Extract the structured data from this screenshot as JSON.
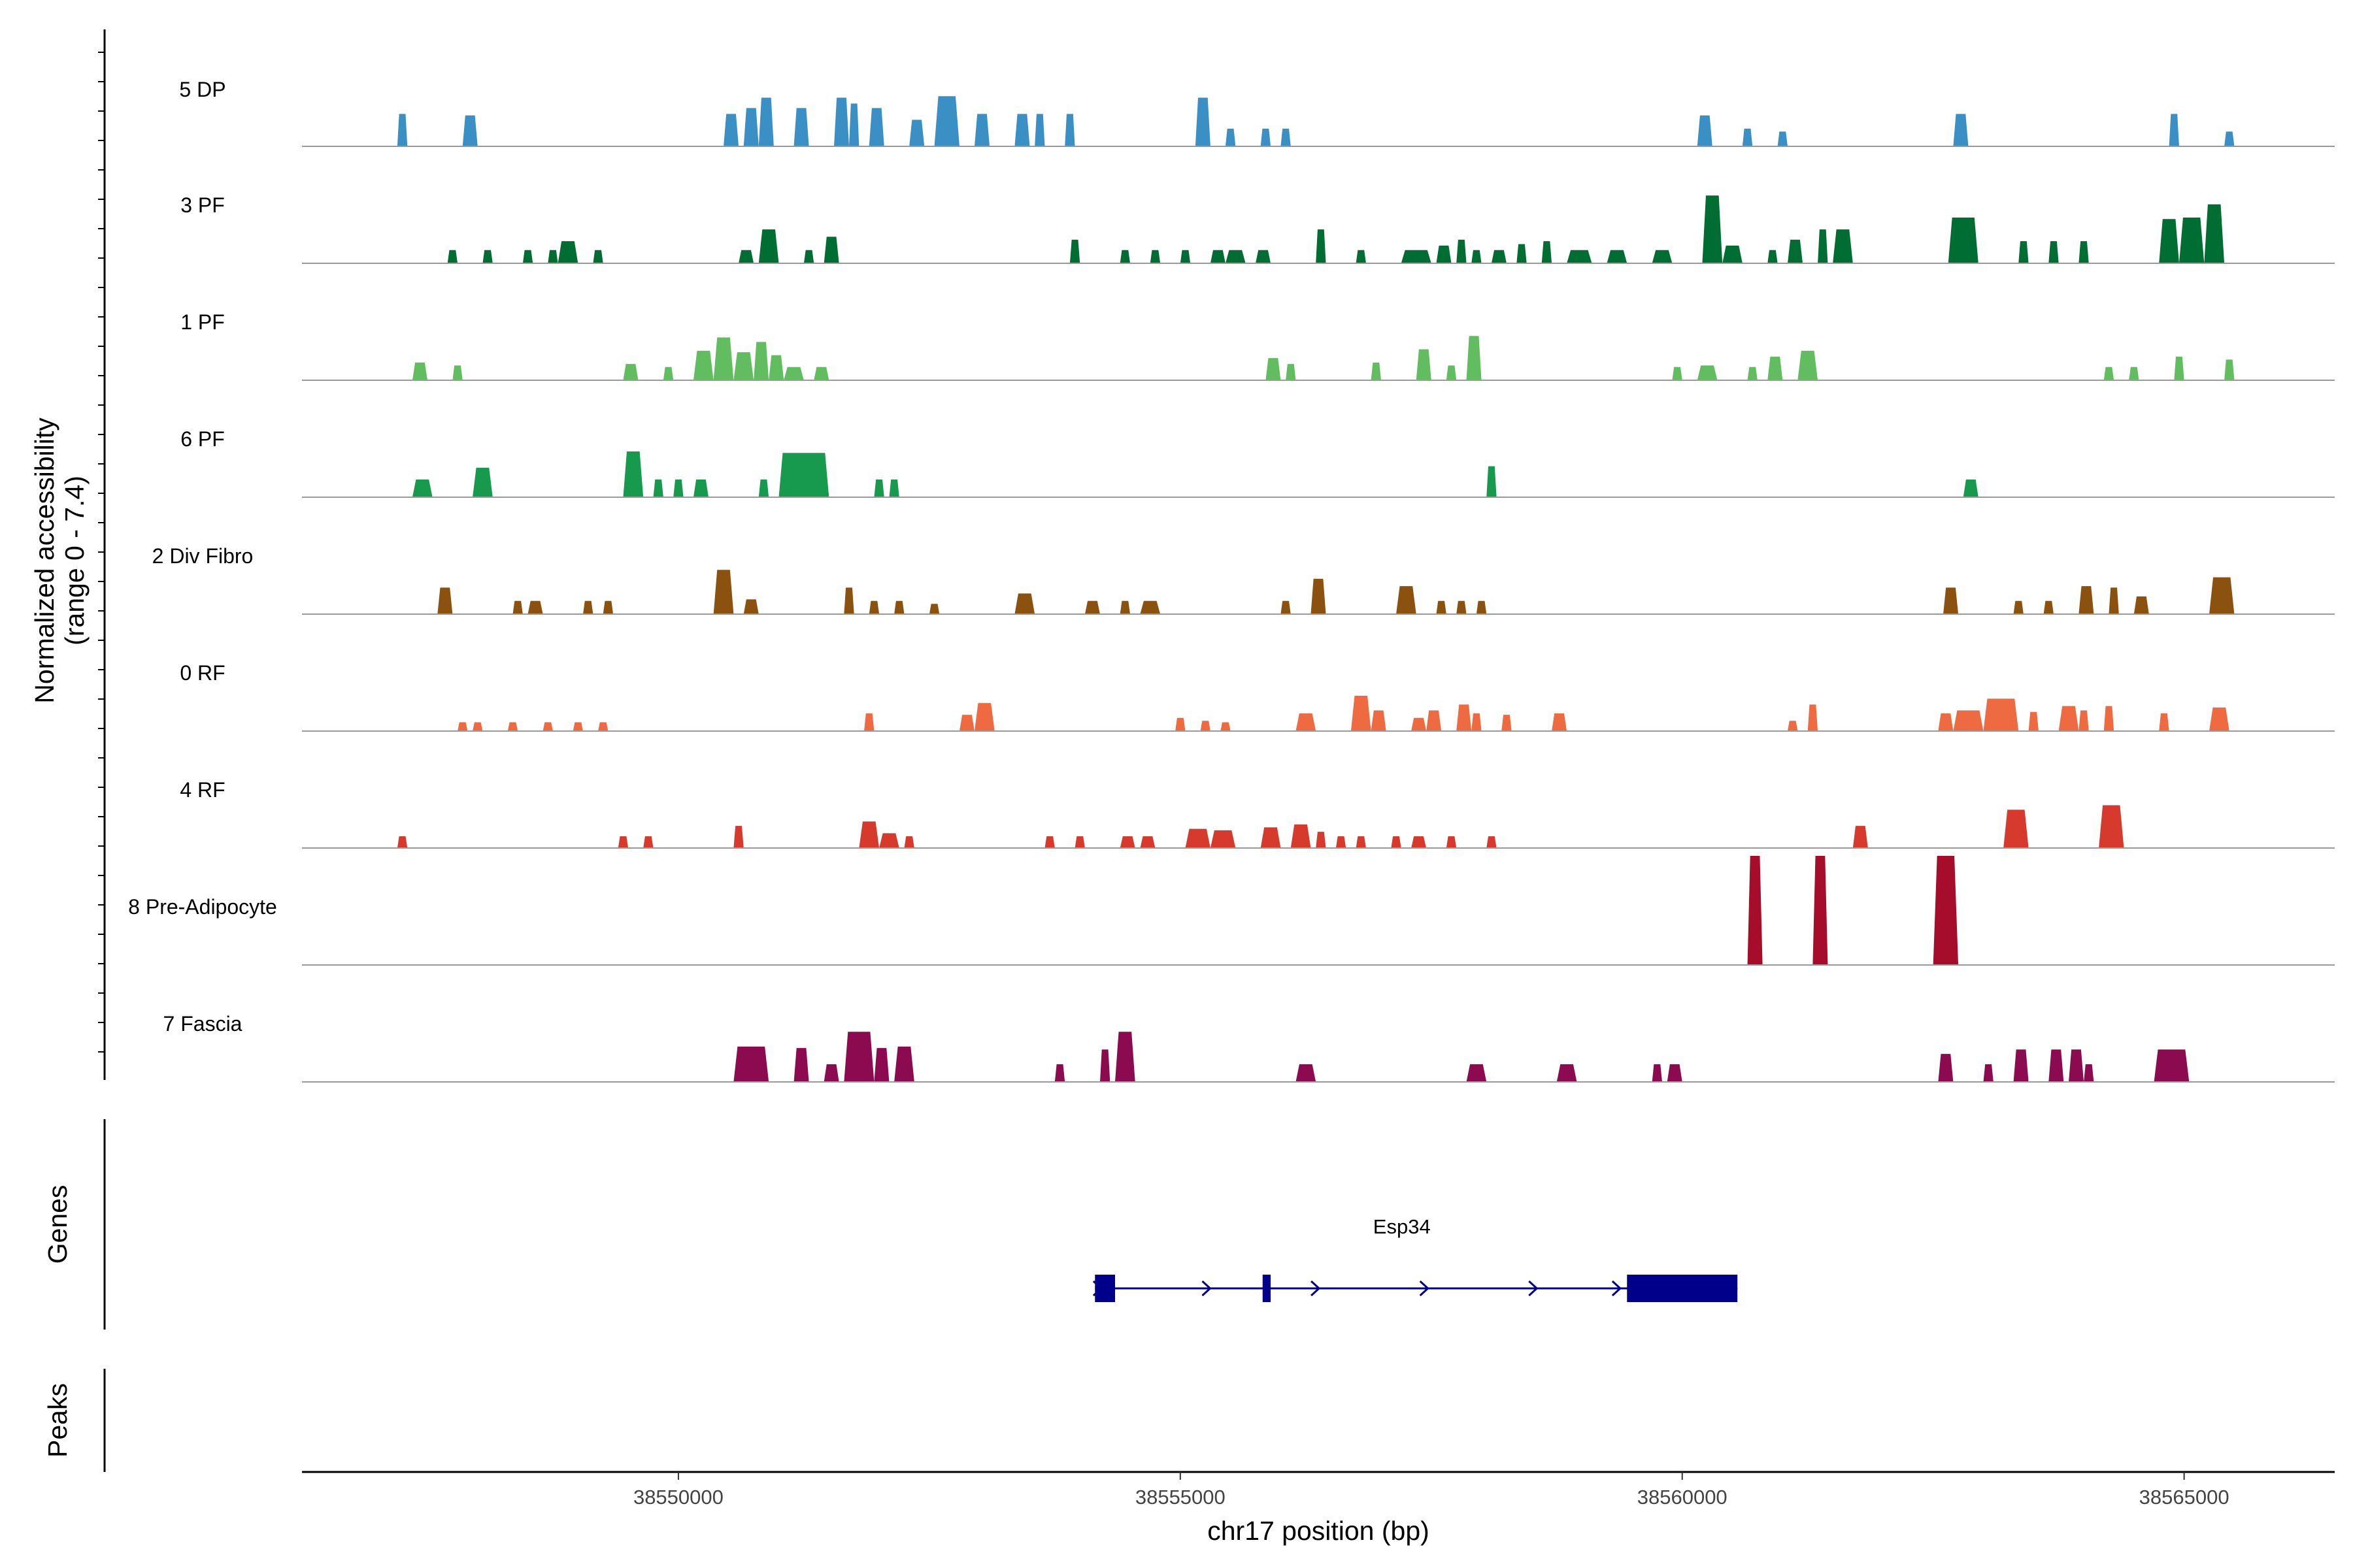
{
  "chart_data": {
    "type": "coverage_tracks",
    "ylabel_line1": "Normalized accessibility",
    "ylabel_line2": "(range 0 - 7.4)",
    "y_range": [
      0,
      7.4
    ],
    "xlabel": "chr17 position (bp)",
    "x_range": [
      38546250,
      38566500
    ],
    "x_ticks": [
      38550000,
      38555000,
      38560000,
      38565000
    ],
    "x_tick_labels": [
      "38550000",
      "38555000",
      "38560000",
      "38565000"
    ],
    "genes_label": "Genes",
    "peaks_label": "Peaks",
    "gene": {
      "name": "Esp34",
      "strand": "+",
      "start": 38554150,
      "end": 38560550,
      "exons": [
        [
          38554150,
          38554350
        ],
        [
          38555820,
          38555900
        ],
        [
          38559450,
          38560550
        ]
      ],
      "color": "#00008b"
    },
    "tracks": [
      {
        "name": "5 DP",
        "color": "#3a8fc5",
        "peaks": [
          [
            38547200,
            38547300,
            2.2
          ],
          [
            38547850,
            38548000,
            2.1
          ],
          [
            38550450,
            38550600,
            2.2
          ],
          [
            38550650,
            38550800,
            2.6
          ],
          [
            38550800,
            38550950,
            3.3
          ],
          [
            38551150,
            38551300,
            2.6
          ],
          [
            38551550,
            38551700,
            3.3
          ],
          [
            38551700,
            38551800,
            2.9
          ],
          [
            38551900,
            38552050,
            2.6
          ],
          [
            38552300,
            38552450,
            1.8
          ],
          [
            38552550,
            38552800,
            3.4
          ],
          [
            38552950,
            38553100,
            2.2
          ],
          [
            38553350,
            38553500,
            2.2
          ],
          [
            38553550,
            38553650,
            2.2
          ],
          [
            38553850,
            38553950,
            2.2
          ],
          [
            38555150,
            38555300,
            3.3
          ],
          [
            38555450,
            38555550,
            1.2
          ],
          [
            38555800,
            38555900,
            1.2
          ],
          [
            38556000,
            38556100,
            1.2
          ],
          [
            38560150,
            38560300,
            2.1
          ],
          [
            38560600,
            38560700,
            1.2
          ],
          [
            38560950,
            38561050,
            1.0
          ],
          [
            38562700,
            38562850,
            2.2
          ],
          [
            38564850,
            38564950,
            2.2
          ],
          [
            38565400,
            38565500,
            1.0
          ]
        ]
      },
      {
        "name": "3 PF",
        "color": "#006d33",
        "peaks": [
          [
            38547700,
            38547800,
            0.9
          ],
          [
            38548050,
            38548150,
            0.9
          ],
          [
            38548450,
            38548550,
            0.9
          ],
          [
            38548700,
            38548800,
            0.9
          ],
          [
            38548800,
            38549000,
            1.5
          ],
          [
            38549150,
            38549250,
            0.9
          ],
          [
            38550600,
            38550750,
            0.9
          ],
          [
            38550800,
            38551000,
            2.3
          ],
          [
            38551250,
            38551350,
            0.9
          ],
          [
            38551450,
            38551600,
            1.8
          ],
          [
            38553900,
            38554000,
            1.6
          ],
          [
            38554400,
            38554500,
            0.9
          ],
          [
            38554700,
            38554800,
            0.9
          ],
          [
            38555000,
            38555100,
            0.9
          ],
          [
            38555300,
            38555450,
            0.9
          ],
          [
            38555450,
            38555650,
            0.9
          ],
          [
            38555750,
            38555900,
            0.9
          ],
          [
            38556350,
            38556450,
            2.3
          ],
          [
            38556750,
            38556850,
            0.9
          ],
          [
            38557200,
            38557500,
            0.9
          ],
          [
            38557550,
            38557700,
            1.2
          ],
          [
            38557750,
            38557850,
            1.6
          ],
          [
            38557900,
            38558000,
            0.9
          ],
          [
            38558100,
            38558250,
            0.9
          ],
          [
            38558350,
            38558450,
            1.3
          ],
          [
            38558600,
            38558700,
            1.5
          ],
          [
            38558850,
            38559100,
            0.9
          ],
          [
            38559250,
            38559450,
            0.9
          ],
          [
            38559700,
            38559900,
            0.9
          ],
          [
            38560200,
            38560400,
            4.6
          ],
          [
            38560400,
            38560600,
            1.2
          ],
          [
            38560850,
            38560950,
            0.9
          ],
          [
            38561050,
            38561200,
            1.6
          ],
          [
            38561350,
            38561450,
            2.3
          ],
          [
            38561500,
            38561700,
            2.3
          ],
          [
            38562650,
            38562950,
            3.1
          ],
          [
            38563350,
            38563450,
            1.5
          ],
          [
            38563650,
            38563750,
            1.5
          ],
          [
            38563950,
            38564050,
            1.5
          ],
          [
            38564750,
            38564950,
            3.0
          ],
          [
            38564950,
            38565200,
            3.1
          ],
          [
            38565200,
            38565400,
            4.0
          ]
        ]
      },
      {
        "name": "1 PF",
        "color": "#62bd61",
        "peaks": [
          [
            38547350,
            38547500,
            1.2
          ],
          [
            38547750,
            38547850,
            1.0
          ],
          [
            38549450,
            38549600,
            1.1
          ],
          [
            38549850,
            38549950,
            0.9
          ],
          [
            38550150,
            38550350,
            2.0
          ],
          [
            38550350,
            38550550,
            2.9
          ],
          [
            38550550,
            38550750,
            1.9
          ],
          [
            38550750,
            38550900,
            2.6
          ],
          [
            38550900,
            38551050,
            1.7
          ],
          [
            38551050,
            38551250,
            0.9
          ],
          [
            38551350,
            38551500,
            0.9
          ],
          [
            38555850,
            38556000,
            1.5
          ],
          [
            38556050,
            38556150,
            1.1
          ],
          [
            38556900,
            38557000,
            1.2
          ],
          [
            38557350,
            38557500,
            2.1
          ],
          [
            38557650,
            38557750,
            1.0
          ],
          [
            38557850,
            38558000,
            3.0
          ],
          [
            38559900,
            38560000,
            0.9
          ],
          [
            38560150,
            38560350,
            1.0
          ],
          [
            38560650,
            38560750,
            0.9
          ],
          [
            38560850,
            38561000,
            1.6
          ],
          [
            38561150,
            38561350,
            2.0
          ],
          [
            38564200,
            38564300,
            0.9
          ],
          [
            38564450,
            38564550,
            0.9
          ],
          [
            38564900,
            38565000,
            1.6
          ],
          [
            38565400,
            38565500,
            1.4
          ]
        ]
      },
      {
        "name": "6 PF",
        "color": "#179a4d",
        "peaks": [
          [
            38547350,
            38547550,
            1.2
          ],
          [
            38547950,
            38548150,
            2.0
          ],
          [
            38549450,
            38549650,
            3.1
          ],
          [
            38549750,
            38549850,
            1.2
          ],
          [
            38549950,
            38550050,
            1.2
          ],
          [
            38550150,
            38550300,
            1.2
          ],
          [
            38550800,
            38550900,
            1.2
          ],
          [
            38551000,
            38551500,
            3.0
          ],
          [
            38551950,
            38552050,
            1.2
          ],
          [
            38552100,
            38552200,
            1.2
          ],
          [
            38558050,
            38558150,
            2.1
          ],
          [
            38562800,
            38562950,
            1.2
          ]
        ]
      },
      {
        "name": "2 Div Fibro",
        "color": "#8b510e",
        "peaks": [
          [
            38547600,
            38547750,
            1.8
          ],
          [
            38548350,
            38548450,
            0.9
          ],
          [
            38548500,
            38548650,
            0.9
          ],
          [
            38549050,
            38549150,
            0.9
          ],
          [
            38549250,
            38549350,
            0.9
          ],
          [
            38550350,
            38550550,
            3.0
          ],
          [
            38550650,
            38550800,
            1.0
          ],
          [
            38551650,
            38551750,
            1.8
          ],
          [
            38551900,
            38552000,
            0.9
          ],
          [
            38552150,
            38552250,
            0.9
          ],
          [
            38552500,
            38552600,
            0.7
          ],
          [
            38553350,
            38553550,
            1.4
          ],
          [
            38554050,
            38554200,
            0.9
          ],
          [
            38554400,
            38554500,
            0.9
          ],
          [
            38554600,
            38554800,
            0.9
          ],
          [
            38556000,
            38556100,
            0.9
          ],
          [
            38556300,
            38556450,
            2.4
          ],
          [
            38557150,
            38557350,
            1.9
          ],
          [
            38557550,
            38557650,
            0.9
          ],
          [
            38557750,
            38557850,
            0.9
          ],
          [
            38557950,
            38558050,
            0.9
          ],
          [
            38562600,
            38562750,
            1.8
          ],
          [
            38563300,
            38563400,
            0.9
          ],
          [
            38563600,
            38563700,
            0.9
          ],
          [
            38563950,
            38564100,
            1.9
          ],
          [
            38564250,
            38564350,
            1.8
          ],
          [
            38564500,
            38564650,
            1.2
          ],
          [
            38565250,
            38565500,
            2.5
          ]
        ]
      },
      {
        "name": "0 RF",
        "color": "#ee6a40",
        "peaks": [
          [
            38547800,
            38547900,
            0.6
          ],
          [
            38547950,
            38548050,
            0.6
          ],
          [
            38548300,
            38548400,
            0.6
          ],
          [
            38548650,
            38548750,
            0.6
          ],
          [
            38548950,
            38549050,
            0.6
          ],
          [
            38549200,
            38549300,
            0.6
          ],
          [
            38551850,
            38551950,
            1.2
          ],
          [
            38552800,
            38552950,
            1.1
          ],
          [
            38552950,
            38553150,
            1.9
          ],
          [
            38554950,
            38555050,
            0.9
          ],
          [
            38555200,
            38555300,
            0.7
          ],
          [
            38555400,
            38555500,
            0.6
          ],
          [
            38556150,
            38556350,
            1.2
          ],
          [
            38556700,
            38556900,
            2.4
          ],
          [
            38556900,
            38557050,
            1.4
          ],
          [
            38557300,
            38557450,
            0.9
          ],
          [
            38557450,
            38557600,
            1.4
          ],
          [
            38557750,
            38557900,
            1.8
          ],
          [
            38557900,
            38558000,
            1.2
          ],
          [
            38558200,
            38558300,
            1.1
          ],
          [
            38558700,
            38558850,
            1.2
          ],
          [
            38561050,
            38561150,
            0.7
          ],
          [
            38561250,
            38561350,
            1.8
          ],
          [
            38562550,
            38562700,
            1.2
          ],
          [
            38562700,
            38563000,
            1.4
          ],
          [
            38563000,
            38563350,
            2.2
          ],
          [
            38563450,
            38563550,
            1.3
          ],
          [
            38563750,
            38563950,
            1.7
          ],
          [
            38563950,
            38564050,
            1.4
          ],
          [
            38564200,
            38564300,
            1.7
          ],
          [
            38564750,
            38564850,
            1.2
          ],
          [
            38565250,
            38565450,
            1.6
          ]
        ]
      },
      {
        "name": "4 RF",
        "color": "#d63a2d",
        "peaks": [
          [
            38547200,
            38547300,
            0.8
          ],
          [
            38549400,
            38549500,
            0.8
          ],
          [
            38549650,
            38549750,
            0.8
          ],
          [
            38550550,
            38550650,
            1.5
          ],
          [
            38551800,
            38552000,
            1.8
          ],
          [
            38552000,
            38552200,
            1.0
          ],
          [
            38552250,
            38552350,
            0.8
          ],
          [
            38553650,
            38553750,
            0.8
          ],
          [
            38553950,
            38554050,
            0.8
          ],
          [
            38554400,
            38554550,
            0.8
          ],
          [
            38554600,
            38554750,
            0.8
          ],
          [
            38555050,
            38555300,
            1.3
          ],
          [
            38555300,
            38555550,
            1.2
          ],
          [
            38555800,
            38556000,
            1.4
          ],
          [
            38556100,
            38556300,
            1.6
          ],
          [
            38556350,
            38556450,
            1.1
          ],
          [
            38556550,
            38556650,
            0.8
          ],
          [
            38556750,
            38556850,
            0.8
          ],
          [
            38557100,
            38557200,
            0.8
          ],
          [
            38557300,
            38557450,
            0.8
          ],
          [
            38557650,
            38557750,
            0.8
          ],
          [
            38558050,
            38558150,
            0.8
          ],
          [
            38561700,
            38561850,
            1.5
          ],
          [
            38563200,
            38563450,
            2.6
          ],
          [
            38564150,
            38564400,
            2.9
          ]
        ]
      },
      {
        "name": "8 Pre-Adipocyte",
        "color": "#a50d2b",
        "peaks": [
          [
            38560650,
            38560800,
            7.4
          ],
          [
            38561300,
            38561450,
            7.4
          ],
          [
            38562500,
            38562750,
            7.4
          ]
        ]
      },
      {
        "name": "7 Fascia",
        "color": "#8b0a50",
        "peaks": [
          [
            38550550,
            38550900,
            2.4
          ],
          [
            38551150,
            38551300,
            2.3
          ],
          [
            38551450,
            38551600,
            1.2
          ],
          [
            38551650,
            38551950,
            3.4
          ],
          [
            38551950,
            38552100,
            2.3
          ],
          [
            38552150,
            38552350,
            2.4
          ],
          [
            38553750,
            38553850,
            1.2
          ],
          [
            38554200,
            38554300,
            2.2
          ],
          [
            38554350,
            38554550,
            3.4
          ],
          [
            38556150,
            38556350,
            1.2
          ],
          [
            38557850,
            38558050,
            1.2
          ],
          [
            38558750,
            38558950,
            1.2
          ],
          [
            38559700,
            38559800,
            1.2
          ],
          [
            38559850,
            38560000,
            1.2
          ],
          [
            38562550,
            38562700,
            1.9
          ],
          [
            38563000,
            38563100,
            1.2
          ],
          [
            38563300,
            38563450,
            2.2
          ],
          [
            38563650,
            38563800,
            2.2
          ],
          [
            38563850,
            38564000,
            2.2
          ],
          [
            38564000,
            38564100,
            1.2
          ],
          [
            38564700,
            38565050,
            2.2
          ]
        ]
      }
    ]
  }
}
